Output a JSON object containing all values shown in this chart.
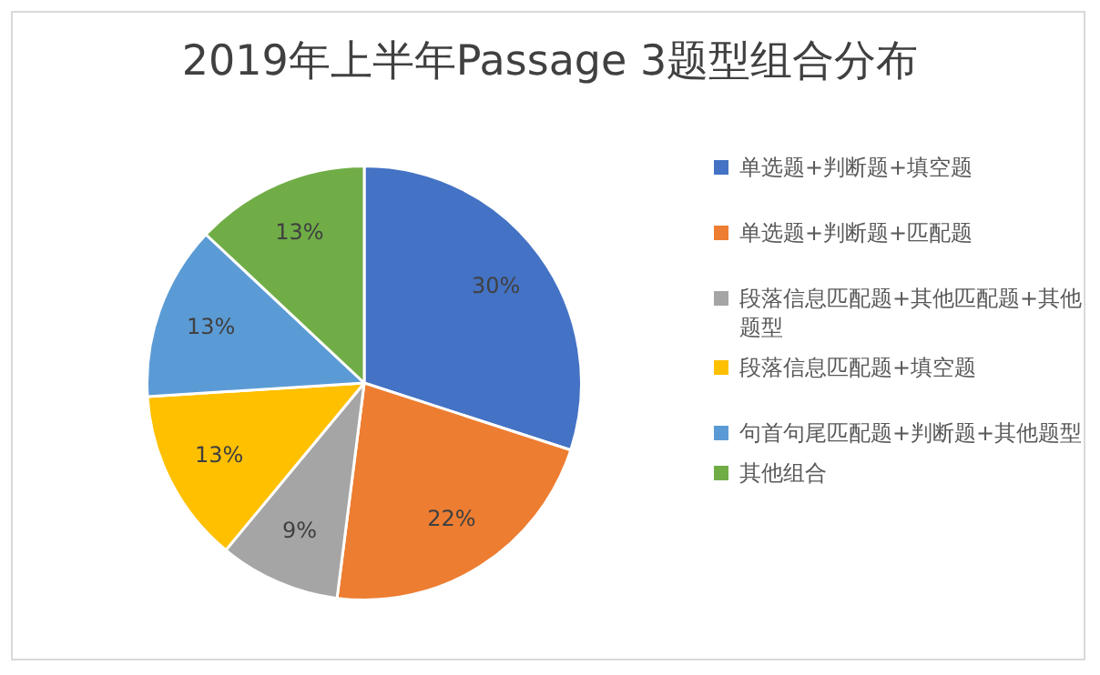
{
  "chart_data": {
    "type": "pie",
    "title": "2019年上半年Passage 3题型组合分布",
    "categories": [
      "单选题+判断题+填空题",
      "单选题+判断题+匹配题",
      "段落信息匹配题+其他匹配题+其他题型",
      "段落信息匹配题+填空题",
      "句首句尾匹配题+判断题+其他题型",
      "其他组合"
    ],
    "values": [
      30,
      22,
      9,
      13,
      13,
      13
    ],
    "colors": [
      "#4472c4",
      "#ed7d31",
      "#a5a5a5",
      "#ffc000",
      "#5b9bd5",
      "#70ad47"
    ],
    "value_labels": [
      "30%",
      "22%",
      "9%",
      "13%",
      "13%",
      "13%"
    ],
    "legend": "right"
  }
}
